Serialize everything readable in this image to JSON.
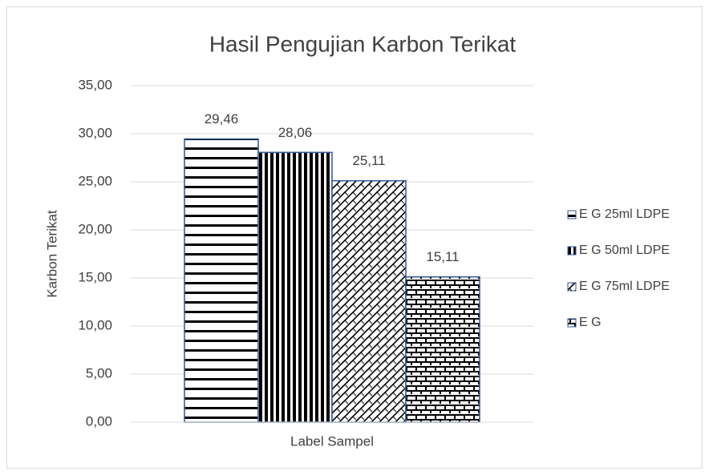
{
  "chart_data": {
    "type": "bar",
    "title": "Hasil Pengujian Karbon Terikat",
    "y_label": "Karbon Terikat",
    "categories": [
      "Label Sampel"
    ],
    "series": [
      {
        "name": "E G 25ml LDPE",
        "color": "#000000",
        "values": [
          29.46
        ],
        "value_labels": [
          "29,46"
        ]
      },
      {
        "name": "E G 50ml LDPE",
        "color": "#000000",
        "values": [
          28.06
        ],
        "value_labels": [
          "28,06"
        ]
      },
      {
        "name": "E G 75ml LDPE",
        "color": "#000000",
        "values": [
          25.11
        ],
        "value_labels": [
          "25,11"
        ]
      },
      {
        "name": "E G",
        "color": "#000000",
        "values": [
          15.11
        ],
        "value_labels": [
          "15,11"
        ]
      }
    ],
    "ylim": [
      0,
      35
    ],
    "yticks": [
      {
        "value": 0,
        "label": "0,00"
      },
      {
        "value": 5,
        "label": "5,00"
      },
      {
        "value": 10,
        "label": "10,00"
      },
      {
        "value": 15,
        "label": "15,00"
      },
      {
        "value": 20,
        "label": "20,00"
      },
      {
        "value": 25,
        "label": "25,00"
      },
      {
        "value": 30,
        "label": "30,00"
      },
      {
        "value": 35,
        "label": "35,00"
      }
    ],
    "grid": true,
    "legend": "right"
  }
}
